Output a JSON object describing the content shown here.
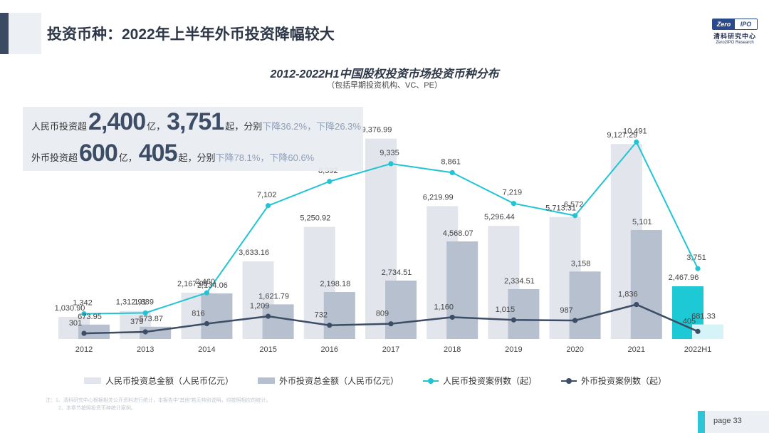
{
  "page": {
    "title": "投资币种：2022年上半年外币投资降幅较大",
    "page_label": "page  33",
    "logo": {
      "mark_left": "Zero",
      "mark_right": "IPO",
      "cn": "清科研究中心",
      "en": "Zero2IPO Research"
    }
  },
  "callout": {
    "line1": {
      "prefix": "人民币投资超",
      "amount": "2,400",
      "unit1": "亿，",
      "count": "3,751",
      "unit2": "起，分别",
      "change": "下降36.2%，下降26.3%"
    },
    "line2": {
      "prefix": "外币投资超",
      "amount": "600",
      "unit1": "亿，",
      "count": "405",
      "unit2": "起，分别",
      "change": "下降78.1%，下降60.6%"
    }
  },
  "colors": {
    "rmb_bar": "#e2e5ec",
    "fx_bar": "#b6c0cf",
    "rmb_bar_highlight": "#1ec9d6",
    "fx_bar_highlight": "#d6f4f7",
    "rmb_line": "#22c4d4",
    "fx_line": "#3d4d66"
  },
  "chart_data": {
    "type": "bar",
    "title": "2012-2022H1中国股权投资市场投资币种分布",
    "subtitle": "（包括早期投资机构、VC、PE）",
    "categories": [
      "2012",
      "2013",
      "2014",
      "2015",
      "2016",
      "2017",
      "2018",
      "2019",
      "2020",
      "2021",
      "2022H1"
    ],
    "series": [
      {
        "name": "人民币投资总金额（人民币亿元）",
        "kind": "bar",
        "values": [
          1030.9,
          1312.91,
          2167.0,
          3633.16,
          5250.92,
          9376.99,
          6219.99,
          5296.44,
          5713.31,
          9127.29,
          2467.96
        ],
        "labels": [
          "1,030.90",
          "1,312.91",
          "2,167.00",
          "3,633.16",
          "5,250.92",
          "9,376.99",
          "6,219.99",
          "5,296.44",
          "5,713.31",
          "9,127.29",
          "2,467.96"
        ]
      },
      {
        "name": "外币投资总金额（人民币亿元）",
        "kind": "bar",
        "values": [
          673.95,
          573.87,
          2134.06,
          1621.79,
          2198.18,
          2734.51,
          4568.07,
          2334.51,
          3158,
          5101,
          681.33
        ],
        "labels": [
          "673.95",
          "573.87",
          "2,134.06",
          "1,621.79",
          "2,198.18",
          "2,734.51",
          "4,568.07",
          "2,334.51",
          "3,158",
          "5,101",
          "681.33"
        ]
      },
      {
        "name": "人民币投资案例数（起）",
        "kind": "line",
        "values": [
          1342,
          1389,
          2460,
          7102,
          8392,
          9335,
          8861,
          7219,
          6572,
          10491,
          3751
        ],
        "labels": [
          "1,342",
          "1,389",
          "2,460",
          "7,102",
          "8,392",
          "9,335",
          "8,861",
          "7,219",
          "6,572",
          "10,491",
          "3,751"
        ]
      },
      {
        "name": "外币投资案例数（起）",
        "kind": "line",
        "values": [
          301,
          379,
          816,
          1209,
          732,
          809,
          1160,
          1015,
          987,
          1836,
          405
        ],
        "labels": [
          "301",
          "379",
          "816",
          "1,209",
          "732",
          "809",
          "1,160",
          "1,015",
          "987",
          "1,836",
          "405"
        ]
      }
    ],
    "legend": "bottom",
    "grid": false
  },
  "footnote": {
    "line1": "注：1、清科研究中心根据相关公开资料进行统计，本报告中“其他”若无特别说明，均按照相应的统计。",
    "line2": "2、本章节按照投资币种统计案例。"
  }
}
